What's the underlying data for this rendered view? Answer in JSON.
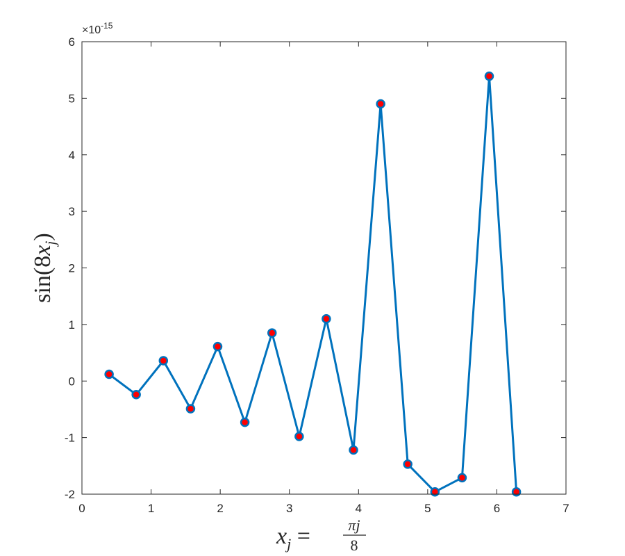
{
  "chart_data": {
    "type": "line",
    "title": "",
    "xlabel": {
      "var": "x",
      "sub": "j",
      "eq": " = ",
      "num": "πj",
      "den": "8"
    },
    "ylabel": {
      "func": "sin(8",
      "var": "x",
      "sub": "j",
      "close": ")"
    },
    "xlim": [
      0,
      7
    ],
    "ylim": [
      -2,
      6
    ],
    "y_exponent": "×10",
    "y_exponent_power": "-15",
    "xticks": [
      "0",
      "1",
      "2",
      "3",
      "4",
      "5",
      "6",
      "7"
    ],
    "yticks": [
      "-2",
      "-1",
      "0",
      "1",
      "2",
      "3",
      "4",
      "5",
      "6"
    ],
    "grid": false,
    "line_color": "#0072BD",
    "marker_color": "#FF0000",
    "series": [
      {
        "x": [
          0.393,
          0.785,
          1.178,
          1.571,
          1.963,
          2.356,
          2.749,
          3.142,
          3.534,
          3.927,
          4.32,
          4.712,
          5.105,
          5.498,
          5.89,
          6.283
        ],
        "values": [
          0.12,
          -0.24,
          0.36,
          -0.49,
          0.61,
          -0.73,
          0.85,
          -0.98,
          1.1,
          -1.22,
          4.9,
          -1.47,
          -1.96,
          -1.71,
          5.39,
          -1.96
        ]
      }
    ]
  }
}
